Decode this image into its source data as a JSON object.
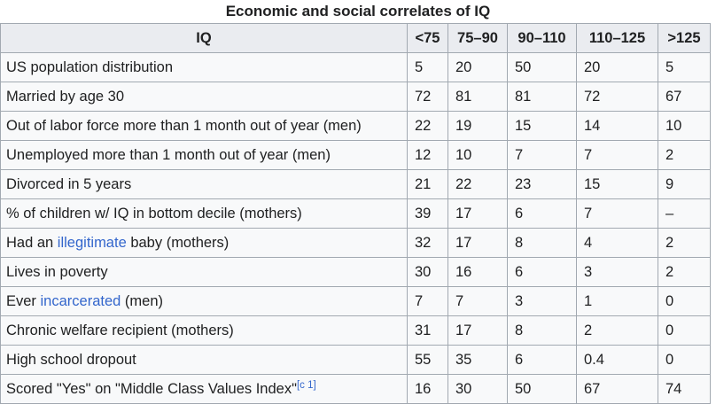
{
  "caption": "Economic and social correlates of IQ",
  "headers": [
    "IQ",
    "<75",
    "75–90",
    "90–110",
    "110–125",
    ">125"
  ],
  "rows": [
    {
      "label": "US population distribution",
      "values": [
        "5",
        "20",
        "50",
        "20",
        "5"
      ]
    },
    {
      "label": "Married by age 30",
      "values": [
        "72",
        "81",
        "81",
        "72",
        "67"
      ]
    },
    {
      "label": "Out of labor force more than 1 month out of year (men)",
      "values": [
        "22",
        "19",
        "15",
        "14",
        "10"
      ]
    },
    {
      "label": "Unemployed more than 1 month out of year (men)",
      "values": [
        "12",
        "10",
        "7",
        "7",
        "2"
      ]
    },
    {
      "label": "Divorced in 5 years",
      "values": [
        "21",
        "22",
        "23",
        "15",
        "9"
      ]
    },
    {
      "label": "% of children w/ IQ in bottom decile (mothers)",
      "values": [
        "39",
        "17",
        "6",
        "7",
        "–"
      ]
    },
    {
      "label_pre": "Had an ",
      "label_link": "illegitimate",
      "label_post": " baby (mothers)",
      "values": [
        "32",
        "17",
        "8",
        "4",
        "2"
      ]
    },
    {
      "label": "Lives in poverty",
      "values": [
        "30",
        "16",
        "6",
        "3",
        "2"
      ]
    },
    {
      "label_pre": "Ever ",
      "label_link": "incarcerated",
      "label_post": " (men)",
      "values": [
        "7",
        "7",
        "3",
        "1",
        "0"
      ]
    },
    {
      "label": "Chronic welfare recipient (mothers)",
      "values": [
        "31",
        "17",
        "8",
        "2",
        "0"
      ]
    },
    {
      "label": "High school dropout",
      "values": [
        "55",
        "35",
        "6",
        "0.4",
        "0"
      ]
    },
    {
      "label": "Scored \"Yes\" on \"Middle Class Values Index\"",
      "footnote": "[c 1]",
      "values": [
        "16",
        "30",
        "50",
        "67",
        "74"
      ]
    }
  ],
  "colors": {
    "header_bg": "#eaecf0",
    "cell_bg": "#f8f9fa",
    "border": "#a2a9b1",
    "link": "#3366cc",
    "text": "#202122"
  }
}
